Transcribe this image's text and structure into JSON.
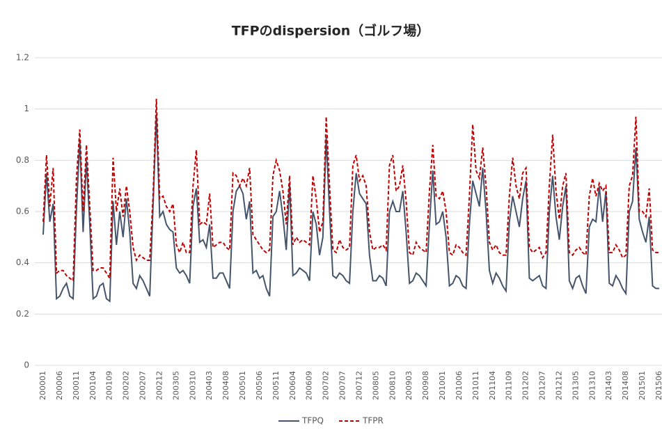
{
  "chart_data": {
    "type": "line",
    "title": "TFPのdispersion（ゴルフ場）",
    "categories": [
      "200001",
      null,
      null,
      null,
      null,
      "200006",
      null,
      null,
      null,
      null,
      "200011",
      null,
      null,
      null,
      null,
      "200104",
      null,
      null,
      null,
      null,
      "200109",
      null,
      null,
      null,
      null,
      "200202",
      null,
      null,
      null,
      null,
      "200207",
      null,
      null,
      null,
      null,
      "200212",
      null,
      null,
      null,
      null,
      "200305",
      null,
      null,
      null,
      null,
      "200310",
      null,
      null,
      null,
      null,
      "200403",
      null,
      null,
      null,
      null,
      "200408",
      null,
      null,
      null,
      null,
      "200501",
      null,
      null,
      null,
      null,
      "200506",
      null,
      null,
      null,
      null,
      "200511",
      null,
      null,
      null,
      null,
      "200604",
      null,
      null,
      null,
      null,
      "200609",
      null,
      null,
      null,
      null,
      "200702",
      null,
      null,
      null,
      null,
      "200707",
      null,
      null,
      null,
      null,
      "200712",
      null,
      null,
      null,
      null,
      "200805",
      null,
      null,
      null,
      null,
      "200810",
      null,
      null,
      null,
      null,
      "200903",
      null,
      null,
      null,
      null,
      "200908",
      null,
      null,
      null,
      null,
      "201001",
      null,
      null,
      null,
      null,
      "201006",
      null,
      null,
      null,
      null,
      "201011",
      null,
      null,
      null,
      null,
      "201104",
      null,
      null,
      null,
      null,
      "201109",
      null,
      null,
      null,
      null,
      "201202",
      null,
      null,
      null,
      null,
      "201207",
      null,
      null,
      null,
      null,
      "201212",
      null,
      null,
      null,
      null,
      "201305",
      null,
      null,
      null,
      null,
      "201310",
      null,
      null,
      null,
      null,
      "201403",
      null,
      null,
      null,
      null,
      "201408",
      null,
      null,
      null,
      null,
      "201501",
      null,
      null,
      null,
      null,
      "201506"
    ],
    "series": [
      {
        "name": "TFPQ",
        "color": "#44546a",
        "dash": false,
        "values": [
          0.51,
          0.75,
          0.56,
          0.63,
          0.26,
          0.27,
          0.3,
          0.32,
          0.27,
          0.26,
          0.61,
          0.88,
          0.52,
          0.8,
          0.55,
          0.26,
          0.27,
          0.31,
          0.32,
          0.26,
          0.25,
          0.64,
          0.47,
          0.6,
          0.5,
          0.65,
          0.52,
          0.32,
          0.3,
          0.35,
          0.33,
          0.3,
          0.27,
          0.62,
          0.98,
          0.58,
          0.6,
          0.55,
          0.53,
          0.52,
          0.38,
          0.36,
          0.37,
          0.35,
          0.32,
          0.62,
          0.69,
          0.48,
          0.49,
          0.46,
          0.55,
          0.34,
          0.34,
          0.36,
          0.36,
          0.33,
          0.3,
          0.6,
          0.68,
          0.7,
          0.67,
          0.57,
          0.64,
          0.36,
          0.37,
          0.34,
          0.35,
          0.3,
          0.27,
          0.58,
          0.6,
          0.68,
          0.58,
          0.45,
          0.71,
          0.35,
          0.36,
          0.38,
          0.37,
          0.36,
          0.33,
          0.6,
          0.55,
          0.43,
          0.5,
          0.89,
          0.6,
          0.35,
          0.34,
          0.36,
          0.35,
          0.33,
          0.32,
          0.6,
          0.75,
          0.67,
          0.65,
          0.63,
          0.43,
          0.33,
          0.33,
          0.35,
          0.34,
          0.31,
          0.6,
          0.64,
          0.6,
          0.6,
          0.68,
          0.52,
          0.32,
          0.33,
          0.36,
          0.35,
          0.33,
          0.31,
          0.55,
          0.76,
          0.55,
          0.56,
          0.6,
          0.5,
          0.31,
          0.32,
          0.35,
          0.34,
          0.31,
          0.3,
          0.55,
          0.72,
          0.67,
          0.62,
          0.77,
          0.6,
          0.37,
          0.32,
          0.36,
          0.34,
          0.31,
          0.29,
          0.56,
          0.66,
          0.6,
          0.54,
          0.65,
          0.72,
          0.34,
          0.33,
          0.34,
          0.35,
          0.31,
          0.3,
          0.6,
          0.74,
          0.58,
          0.49,
          0.62,
          0.7,
          0.33,
          0.3,
          0.34,
          0.35,
          0.31,
          0.28,
          0.54,
          0.57,
          0.56,
          0.7,
          0.56,
          0.68,
          0.32,
          0.31,
          0.35,
          0.33,
          0.3,
          0.28,
          0.6,
          0.64,
          0.85,
          0.57,
          0.52,
          0.48,
          0.58,
          0.31,
          0.3,
          0.3
        ]
      },
      {
        "name": "TFPR",
        "color": "#c00000",
        "dash": true,
        "values": [
          0.56,
          0.82,
          0.62,
          0.77,
          0.36,
          0.37,
          0.37,
          0.35,
          0.34,
          0.33,
          0.73,
          0.92,
          0.6,
          0.86,
          0.62,
          0.37,
          0.37,
          0.38,
          0.38,
          0.36,
          0.34,
          0.81,
          0.6,
          0.69,
          0.58,
          0.7,
          0.6,
          0.46,
          0.41,
          0.43,
          0.42,
          0.41,
          0.41,
          0.66,
          1.04,
          0.65,
          0.66,
          0.62,
          0.6,
          0.63,
          0.47,
          0.44,
          0.48,
          0.44,
          0.44,
          0.7,
          0.84,
          0.55,
          0.56,
          0.55,
          0.67,
          0.46,
          0.47,
          0.48,
          0.48,
          0.46,
          0.45,
          0.75,
          0.74,
          0.7,
          0.73,
          0.7,
          0.77,
          0.51,
          0.49,
          0.47,
          0.45,
          0.44,
          0.45,
          0.74,
          0.8,
          0.76,
          0.68,
          0.55,
          0.74,
          0.47,
          0.5,
          0.48,
          0.49,
          0.48,
          0.47,
          0.74,
          0.65,
          0.52,
          0.56,
          0.97,
          0.7,
          0.45,
          0.44,
          0.49,
          0.46,
          0.45,
          0.46,
          0.78,
          0.82,
          0.72,
          0.74,
          0.7,
          0.52,
          0.45,
          0.46,
          0.46,
          0.47,
          0.45,
          0.78,
          0.82,
          0.68,
          0.7,
          0.78,
          0.64,
          0.44,
          0.43,
          0.48,
          0.46,
          0.45,
          0.44,
          0.68,
          0.86,
          0.66,
          0.65,
          0.68,
          0.6,
          0.44,
          0.43,
          0.47,
          0.46,
          0.44,
          0.43,
          0.66,
          0.94,
          0.76,
          0.73,
          0.85,
          0.7,
          0.48,
          0.45,
          0.47,
          0.44,
          0.43,
          0.43,
          0.66,
          0.81,
          0.7,
          0.65,
          0.75,
          0.77,
          0.46,
          0.44,
          0.45,
          0.46,
          0.42,
          0.44,
          0.7,
          0.9,
          0.68,
          0.57,
          0.7,
          0.75,
          0.44,
          0.43,
          0.45,
          0.46,
          0.44,
          0.43,
          0.66,
          0.73,
          0.66,
          0.71,
          0.68,
          0.7,
          0.44,
          0.44,
          0.47,
          0.45,
          0.42,
          0.43,
          0.7,
          0.74,
          0.97,
          0.6,
          0.6,
          0.58,
          0.69,
          0.45,
          0.44,
          0.44
        ]
      }
    ],
    "ylim": [
      0,
      1.2
    ],
    "yticks": [
      0,
      0.2,
      0.4,
      0.6,
      0.8,
      1,
      1.2
    ],
    "grid": true,
    "legend": "bottom"
  }
}
